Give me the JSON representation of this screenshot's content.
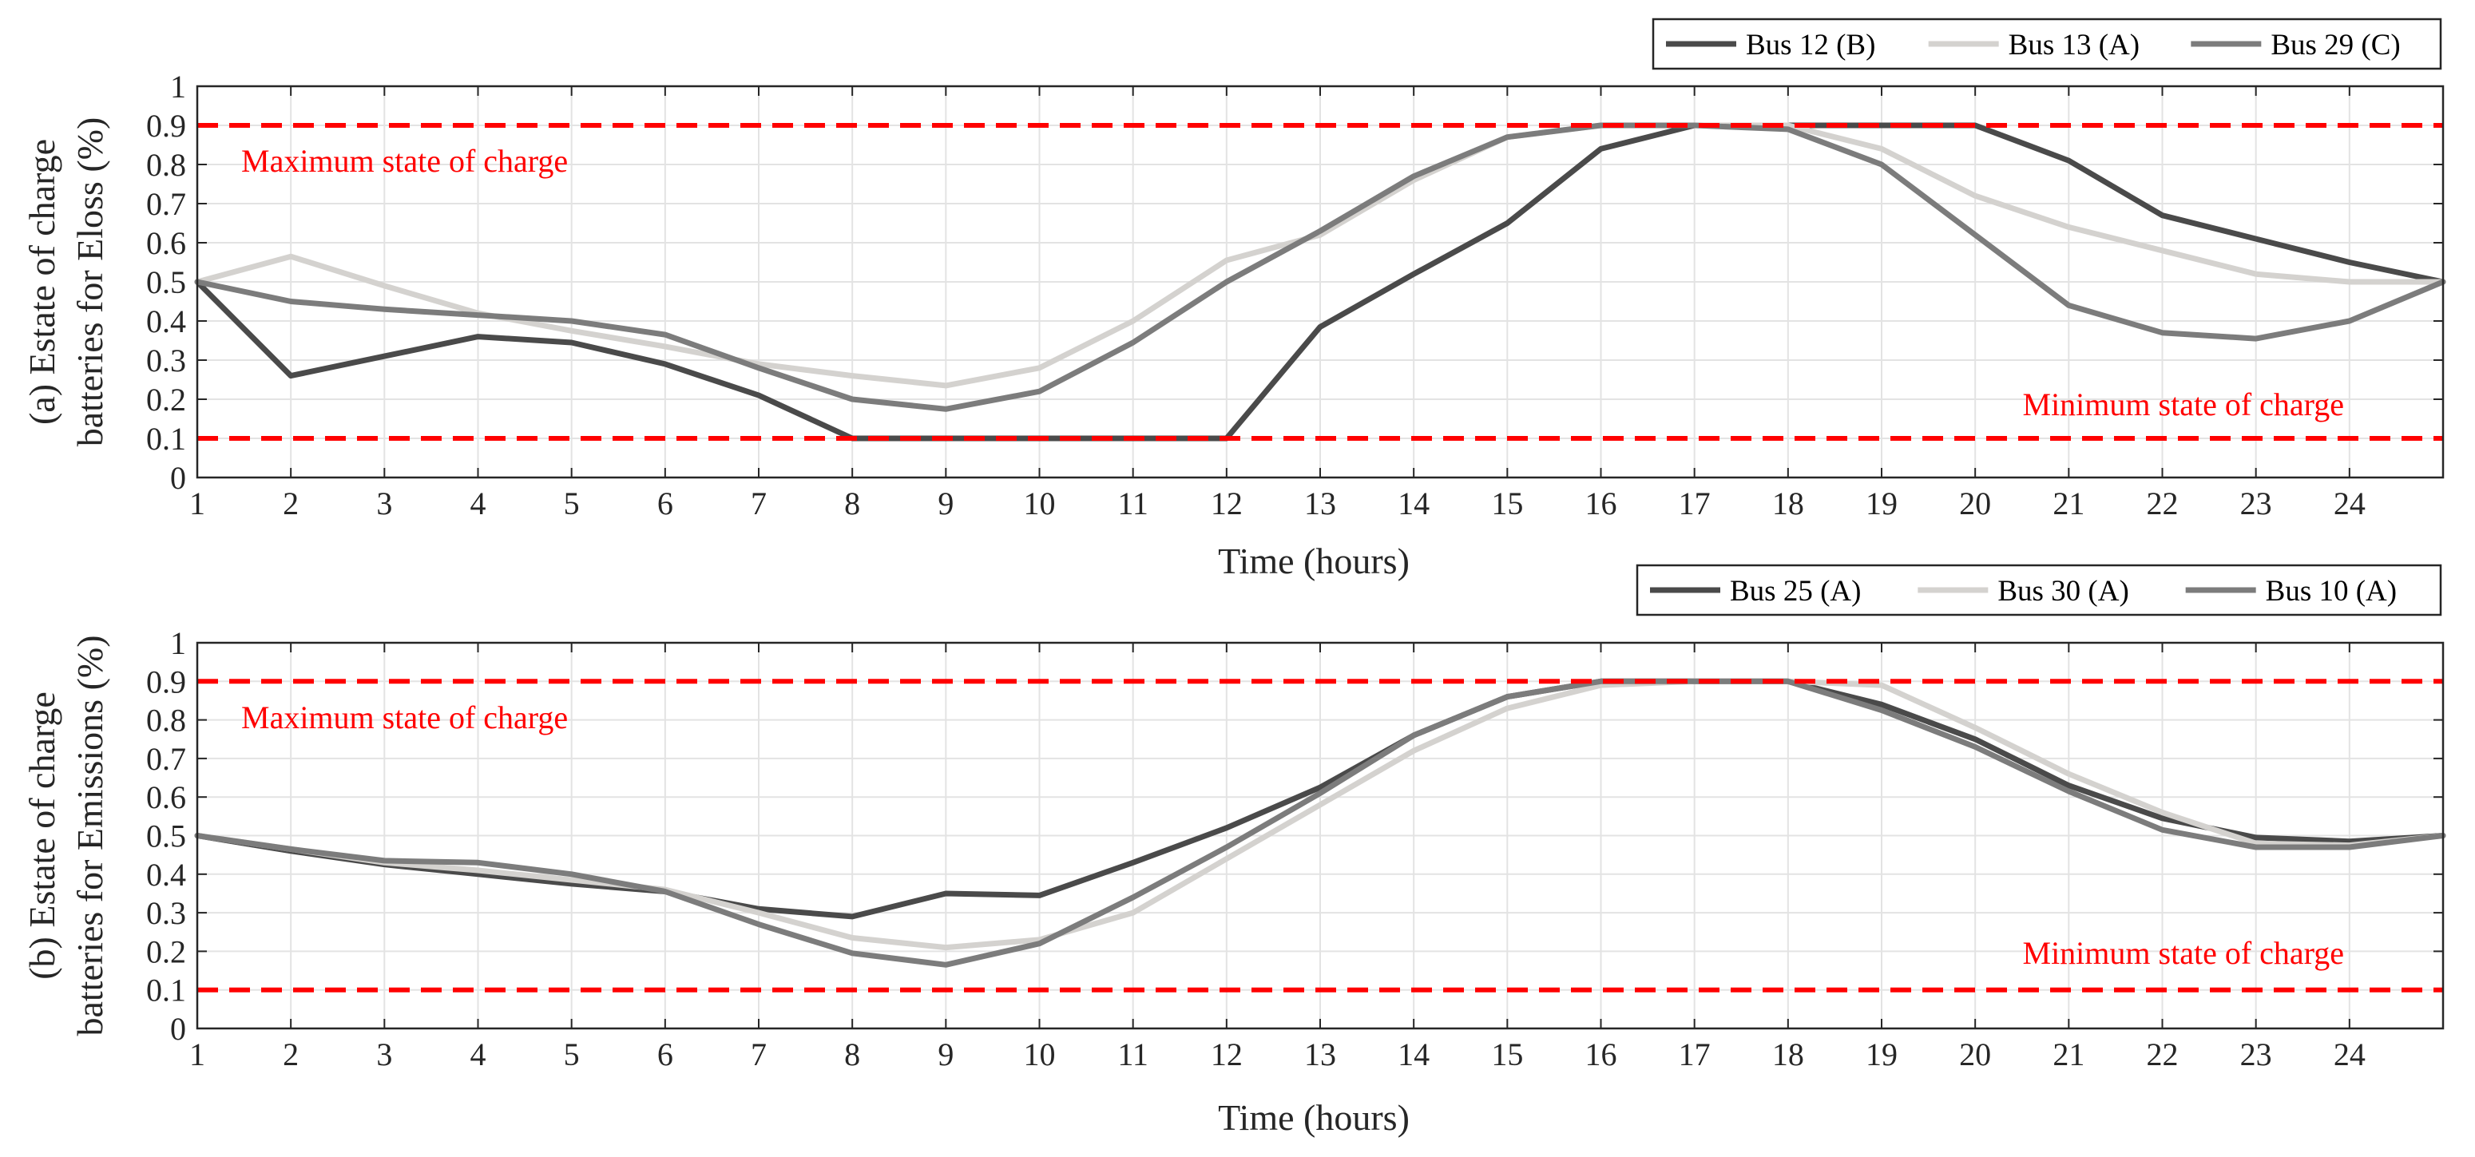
{
  "chart_data": [
    {
      "type": "line",
      "panel": "a",
      "ylabel_line1": "(a) Estate of charge",
      "ylabel_line2": "batteries for Eloss (%)",
      "xlabel": "Time (hours)",
      "xlim": [
        1,
        25
      ],
      "ylim": [
        0,
        1
      ],
      "xticks": [
        1,
        2,
        3,
        4,
        5,
        6,
        7,
        8,
        9,
        10,
        11,
        12,
        13,
        14,
        15,
        16,
        17,
        18,
        19,
        20,
        21,
        22,
        23,
        24
      ],
      "yticks": [
        0,
        0.1,
        0.2,
        0.3,
        0.4,
        0.5,
        0.6,
        0.7,
        0.8,
        0.9,
        1
      ],
      "ytick_labels": [
        "0",
        "0.1",
        "0.2",
        "0.3",
        "0.4",
        "0.5",
        "0.6",
        "0.7",
        "0.8",
        "0.9",
        "1"
      ],
      "grid": true,
      "legend_position": "top-right outside",
      "x": [
        1,
        2,
        3,
        4,
        5,
        6,
        7,
        8,
        9,
        10,
        11,
        12,
        13,
        14,
        15,
        16,
        17,
        18,
        19,
        20,
        21,
        22,
        23,
        24,
        25
      ],
      "series": [
        {
          "name": "Bus 12 (B)",
          "color": "#4a4a4a",
          "values": [
            0.5,
            0.26,
            0.31,
            0.36,
            0.345,
            0.29,
            0.21,
            0.1,
            0.1,
            0.1,
            0.1,
            0.1,
            0.385,
            0.52,
            0.65,
            0.84,
            0.9,
            0.9,
            0.9,
            0.9,
            0.81,
            0.67,
            0.61,
            0.55,
            0.5
          ]
        },
        {
          "name": "Bus 13 (A)",
          "color": "#d4d2cf",
          "values": [
            0.5,
            0.565,
            0.49,
            0.42,
            0.375,
            0.335,
            0.29,
            0.26,
            0.235,
            0.28,
            0.4,
            0.555,
            0.62,
            0.76,
            0.87,
            0.9,
            0.9,
            0.9,
            0.84,
            0.72,
            0.64,
            0.58,
            0.52,
            0.5,
            0.5
          ]
        },
        {
          "name": "Bus 29 (C)",
          "color": "#7c7c7c",
          "values": [
            0.5,
            0.45,
            0.43,
            0.415,
            0.4,
            0.365,
            0.28,
            0.2,
            0.175,
            0.22,
            0.345,
            0.5,
            0.63,
            0.77,
            0.87,
            0.9,
            0.9,
            0.89,
            0.8,
            0.62,
            0.44,
            0.37,
            0.355,
            0.4,
            0.5
          ]
        }
      ],
      "reference_lines": [
        {
          "y": 0.9,
          "label": "Maximum state of charge",
          "color": "#ff0000"
        },
        {
          "y": 0.1,
          "label": "Minimum state of charge",
          "color": "#ff0000"
        }
      ]
    },
    {
      "type": "line",
      "panel": "b",
      "ylabel_line1": "(b) Estate of charge",
      "ylabel_line2": "batteries for Emissions (%)",
      "xlabel": "Time (hours)",
      "xlim": [
        1,
        25
      ],
      "ylim": [
        0,
        1
      ],
      "xticks": [
        1,
        2,
        3,
        4,
        5,
        6,
        7,
        8,
        9,
        10,
        11,
        12,
        13,
        14,
        15,
        16,
        17,
        18,
        19,
        20,
        21,
        22,
        23,
        24
      ],
      "yticks": [
        0,
        0.1,
        0.2,
        0.3,
        0.4,
        0.5,
        0.6,
        0.7,
        0.8,
        0.9,
        1
      ],
      "ytick_labels": [
        "0",
        "0.1",
        "0.2",
        "0.3",
        "0.4",
        "0.5",
        "0.6",
        "0.7",
        "0.8",
        "0.9",
        "1"
      ],
      "grid": true,
      "legend_position": "top-right outside",
      "x": [
        1,
        2,
        3,
        4,
        5,
        6,
        7,
        8,
        9,
        10,
        11,
        12,
        13,
        14,
        15,
        16,
        17,
        18,
        19,
        20,
        21,
        22,
        23,
        24,
        25
      ],
      "series": [
        {
          "name": "Bus 25 (A)",
          "color": "#4a4a4a",
          "values": [
            0.5,
            0.46,
            0.425,
            0.4,
            0.375,
            0.355,
            0.31,
            0.29,
            0.35,
            0.345,
            0.43,
            0.52,
            0.625,
            0.76,
            0.86,
            0.9,
            0.9,
            0.9,
            0.84,
            0.75,
            0.63,
            0.545,
            0.495,
            0.485,
            0.5
          ]
        },
        {
          "name": "Bus 30 (A)",
          "color": "#d4d2cf",
          "values": [
            0.5,
            0.465,
            0.43,
            0.41,
            0.385,
            0.36,
            0.3,
            0.235,
            0.21,
            0.23,
            0.3,
            0.44,
            0.58,
            0.72,
            0.83,
            0.89,
            0.9,
            0.9,
            0.89,
            0.78,
            0.66,
            0.56,
            0.48,
            0.475,
            0.5
          ]
        },
        {
          "name": "Bus 10 (A)",
          "color": "#7c7c7c",
          "values": [
            0.5,
            0.465,
            0.435,
            0.43,
            0.4,
            0.355,
            0.27,
            0.195,
            0.165,
            0.22,
            0.34,
            0.47,
            0.61,
            0.76,
            0.86,
            0.9,
            0.9,
            0.9,
            0.825,
            0.73,
            0.615,
            0.515,
            0.47,
            0.47,
            0.5
          ]
        }
      ],
      "reference_lines": [
        {
          "y": 0.9,
          "label": "Maximum state of charge",
          "color": "#ff0000"
        },
        {
          "y": 0.1,
          "label": "Minimum state of charge",
          "color": "#ff0000"
        }
      ]
    }
  ]
}
